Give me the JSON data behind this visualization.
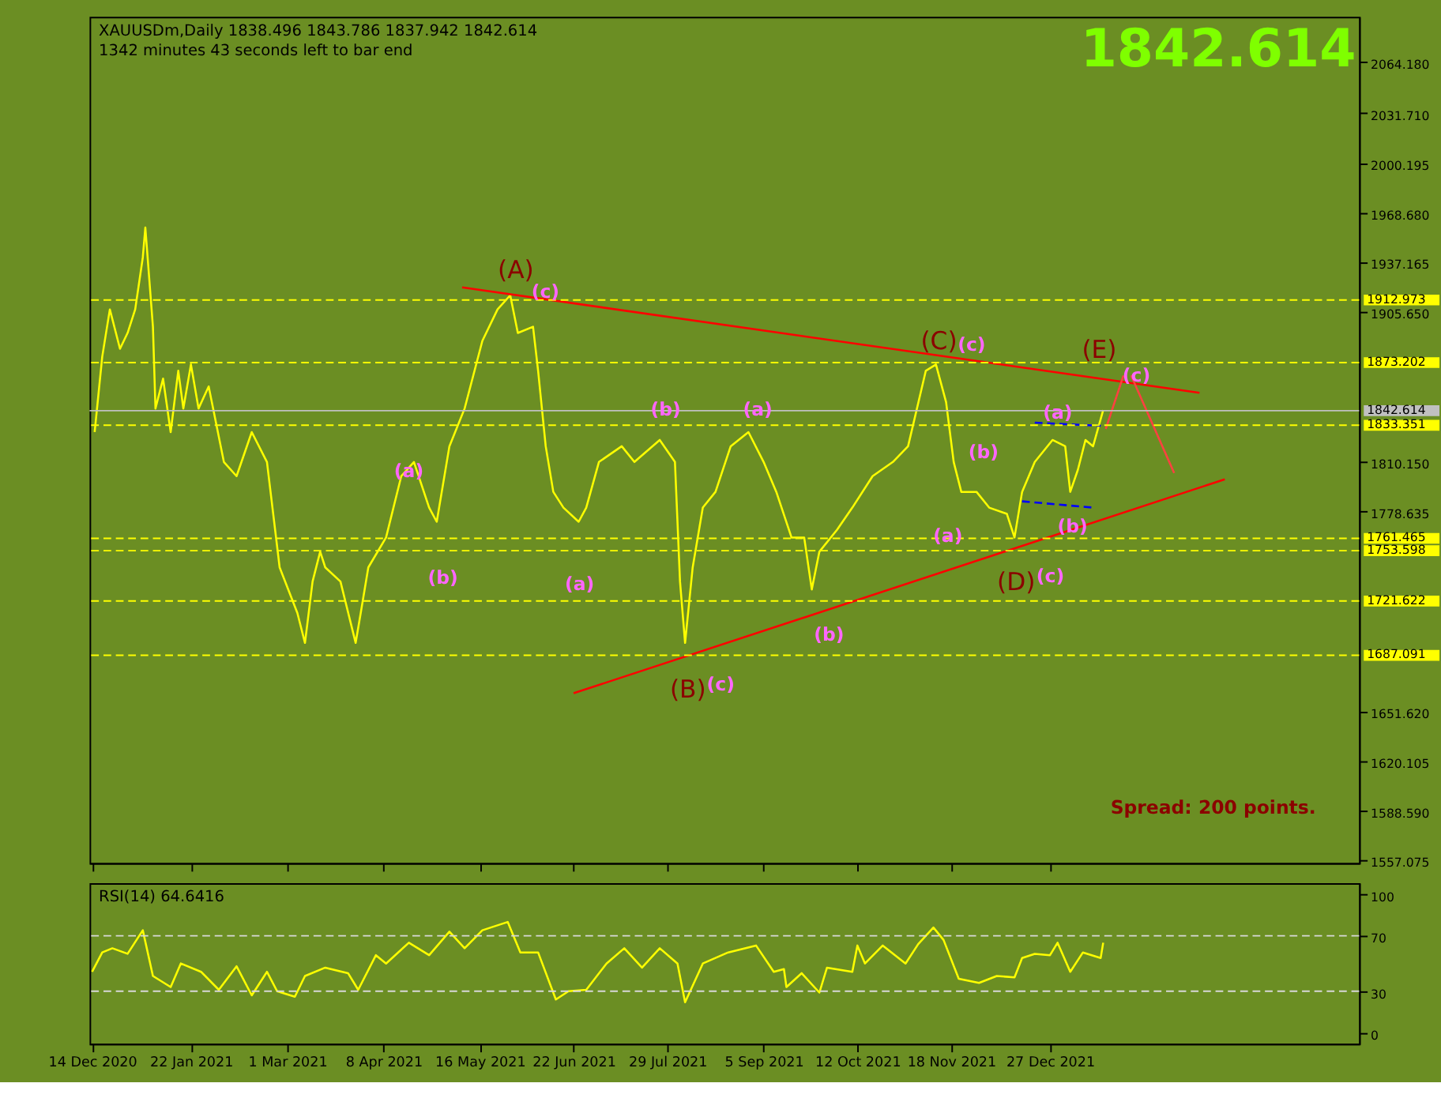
{
  "chart_data": [
    {
      "type": "line",
      "title": "XAUUSDm,Daily  1838.496 1843.786 1837.942 1842.614",
      "subtitle": "1342 minutes 43 seconds left to bar end",
      "series": [
        {
          "color": "#ffff00",
          "x": [
            "2020-12-15",
            "2020-12-18",
            "2020-12-21",
            "2020-12-25",
            "2020-12-28",
            "2020-12-31",
            "2021-01-03",
            "2021-01-04",
            "2021-01-07",
            "2021-01-08",
            "2021-01-11",
            "2021-01-14",
            "2021-01-17",
            "2021-01-19",
            "2021-01-22",
            "2021-01-25",
            "2021-01-29",
            "2021-02-04",
            "2021-02-09",
            "2021-02-15",
            "2021-02-21",
            "2021-02-26",
            "2021-03-05",
            "2021-03-08",
            "2021-03-11",
            "2021-03-14",
            "2021-03-16",
            "2021-03-22",
            "2021-03-28",
            "2021-03-30",
            "2021-04-02",
            "2021-04-09",
            "2021-04-15",
            "2021-04-20",
            "2021-04-26",
            "2021-04-29",
            "2021-05-04",
            "2021-05-10",
            "2021-05-17",
            "2021-05-23",
            "2021-05-28",
            "2021-05-31",
            "2021-06-06",
            "2021-06-08",
            "2021-06-11",
            "2021-06-14",
            "2021-06-18",
            "2021-06-24",
            "2021-06-27",
            "2021-07-02",
            "2021-07-11",
            "2021-07-16",
            "2021-07-26",
            "2021-08-01",
            "2021-08-03",
            "2021-08-05",
            "2021-08-08",
            "2021-08-12",
            "2021-08-17",
            "2021-08-23",
            "2021-08-30",
            "2021-09-05",
            "2021-09-10",
            "2021-09-16",
            "2021-09-21",
            "2021-09-24",
            "2021-09-27",
            "2021-10-04",
            "2021-10-10",
            "2021-10-18",
            "2021-10-26",
            "2021-11-01",
            "2021-11-08",
            "2021-11-12",
            "2021-11-16",
            "2021-11-19",
            "2021-11-22",
            "2021-11-28",
            "2021-12-03",
            "2021-12-10",
            "2021-12-13",
            "2021-12-16",
            "2021-12-21",
            "2021-12-28",
            "2022-01-02",
            "2022-01-04",
            "2022-01-07",
            "2022-01-10",
            "2022-01-13",
            "2022-01-17"
          ],
          "values": [
            1829,
            1877,
            1907,
            1882,
            1892,
            1907,
            1940,
            1959,
            1896,
            1844,
            1863,
            1829,
            1868,
            1844,
            1872,
            1844,
            1858,
            1810,
            1801,
            1829,
            1810,
            1743,
            1714,
            1695,
            1734,
            1753,
            1743,
            1734,
            1695,
            1714,
            1743,
            1762,
            1801,
            1810,
            1781,
            1772,
            1820,
            1844,
            1887,
            1907,
            1916,
            1892,
            1896,
            1868,
            1820,
            1791,
            1781,
            1772,
            1781,
            1810,
            1820,
            1810,
            1824,
            1810,
            1734,
            1695,
            1743,
            1781,
            1791,
            1820,
            1829,
            1810,
            1791,
            1762,
            1762,
            1729,
            1753,
            1767,
            1781,
            1801,
            1810,
            1820,
            1868,
            1872,
            1848,
            1810,
            1791,
            1791,
            1781,
            1777,
            1762,
            1791,
            1810,
            1824,
            1820,
            1791,
            1805,
            1824,
            1820,
            1843
          ]
        },
        {
          "color": "#ff0000",
          "x": [
            "2021-05-09",
            "2022-02-24"
          ],
          "values": [
            1921,
            1854
          ]
        },
        {
          "color": "#ff0000",
          "x": [
            "2021-06-22",
            "2022-03-06"
          ],
          "values": [
            1663,
            1799
          ]
        },
        {
          "color": "#0000ff",
          "line_style": "dashed",
          "x": [
            "2021-12-21",
            "2022-01-16"
          ],
          "values": [
            1835,
            1833
          ]
        },
        {
          "color": "#0000ff",
          "line_style": "dashed",
          "x": [
            "2021-12-16",
            "2022-01-13"
          ],
          "values": [
            1785,
            1781
          ]
        },
        {
          "color": "#ff4040",
          "x": [
            "2022-01-18",
            "2022-01-25"
          ],
          "values": [
            1831,
            1865
          ]
        },
        {
          "color": "#ff4040",
          "x": [
            "2022-01-28",
            "2022-02-14"
          ],
          "values": [
            1865,
            1803
          ]
        }
      ],
      "xlim": [
        "2020-12-13",
        "2022-04-28"
      ],
      "xticks": [
        {
          "value": "2020-12-14",
          "label": null
        },
        {
          "value": "2021-01-22",
          "label": null
        },
        {
          "value": "2021-03-01",
          "label": null
        },
        {
          "value": "2021-04-08",
          "label": null
        },
        {
          "value": "2021-05-16",
          "label": null
        },
        {
          "value": "2021-06-22",
          "label": null
        },
        {
          "value": "2021-07-29",
          "label": null
        },
        {
          "value": "2021-09-05",
          "label": null
        },
        {
          "value": "2021-10-12",
          "label": null
        },
        {
          "value": "2021-11-18",
          "label": null
        },
        {
          "value": "2021-12-27",
          "label": null
        }
      ],
      "ylim": [
        1555,
        2093
      ],
      "yticks": [
        {
          "value": 2064.18,
          "label": "2064.180"
        },
        {
          "value": 2031.71,
          "label": "2031.710"
        },
        {
          "value": 2000.195,
          "label": "2000.195"
        },
        {
          "value": 1968.68,
          "label": "1968.680"
        },
        {
          "value": 1937.165,
          "label": "1937.165"
        },
        {
          "value": 1905.65,
          "label": "1905.650"
        },
        {
          "value": 1810.15,
          "label": "1810.150"
        },
        {
          "value": 1778.635,
          "label": "1778.635"
        },
        {
          "value": 1651.62,
          "label": "1651.620"
        },
        {
          "value": 1620.105,
          "label": "1620.105"
        },
        {
          "value": 1588.59,
          "label": "1588.590"
        },
        {
          "value": 1557.075,
          "label": "1557.075"
        }
      ],
      "tick_labels": "y",
      "grid": false,
      "marker": "none",
      "line_style": "solid",
      "ref_lines": [
        {
          "axis": "y",
          "value": 1912.973,
          "label": "1912.973",
          "color": "#ffff00",
          "line_style": "dashed"
        },
        {
          "axis": "y",
          "value": 1873.202,
          "label": "1873.202",
          "color": "#ffff00",
          "line_style": "dashed"
        },
        {
          "axis": "y",
          "value": 1833.351,
          "label": "1833.351",
          "color": "#ffff00",
          "line_style": "dashed"
        },
        {
          "axis": "y",
          "value": 1761.465,
          "label": "1761.465",
          "color": "#ffff00",
          "line_style": "dashed"
        },
        {
          "axis": "y",
          "value": 1753.598,
          "label": "1753.598",
          "color": "#ffff00",
          "line_style": "dashed"
        },
        {
          "axis": "y",
          "value": 1721.622,
          "label": "1721.622",
          "color": "#ffff00",
          "line_style": "dashed"
        },
        {
          "axis": "y",
          "value": 1687.091,
          "label": "1687.091",
          "color": "#ffff00",
          "line_style": "dashed"
        },
        {
          "axis": "y",
          "value": 1842.614,
          "label": "1842.614",
          "color": "#c0c0c0",
          "line_style": "solid"
        }
      ],
      "annotations": [
        "1842.614",
        "Spread: 200 points.",
        "(A)",
        "(B)",
        "(C)",
        "(D)",
        "(E)",
        "(c)",
        "(c)",
        "(c)",
        "(c)",
        "(c)",
        "(a)",
        "(b)",
        "(a)",
        "(b)",
        "(a)",
        "(b)",
        "(a)",
        "(b)",
        "(a)",
        "(b)"
      ]
    },
    {
      "type": "line",
      "title": "RSI(14) 64.6416",
      "series": [
        {
          "color": "#ffff00",
          "x": [
            "2020-12-14",
            "2020-12-18",
            "2020-12-22",
            "2020-12-28",
            "2021-01-03",
            "2021-01-07",
            "2021-01-14",
            "2021-01-18",
            "2021-01-26",
            "2021-02-02",
            "2021-02-09",
            "2021-02-15",
            "2021-02-21",
            "2021-02-25",
            "2021-03-04",
            "2021-03-08",
            "2021-03-16",
            "2021-03-25",
            "2021-03-29",
            "2021-04-05",
            "2021-04-09",
            "2021-04-18",
            "2021-04-26",
            "2021-05-04",
            "2021-05-10",
            "2021-05-17",
            "2021-05-27",
            "2021-06-01",
            "2021-06-08",
            "2021-06-15",
            "2021-06-20",
            "2021-06-27",
            "2021-07-05",
            "2021-07-12",
            "2021-07-19",
            "2021-07-26",
            "2021-08-02",
            "2021-08-05",
            "2021-08-12",
            "2021-08-22",
            "2021-09-02",
            "2021-09-09",
            "2021-09-13",
            "2021-09-14",
            "2021-09-20",
            "2021-09-27",
            "2021-09-30",
            "2021-10-10",
            "2021-10-12",
            "2021-10-15",
            "2021-10-22",
            "2021-10-31",
            "2021-11-05",
            "2021-11-11",
            "2021-11-15",
            "2021-11-21",
            "2021-11-29",
            "2021-12-06",
            "2021-12-13",
            "2021-12-16",
            "2021-12-21",
            "2021-12-27",
            "2021-12-30",
            "2022-01-04",
            "2022-01-09",
            "2022-01-16",
            "2022-01-17"
          ],
          "values": [
            44,
            58,
            61,
            57,
            74,
            41,
            33,
            50,
            44,
            31,
            48,
            27,
            44,
            30,
            26,
            41,
            47,
            43,
            31,
            56,
            50,
            65,
            56,
            73,
            61,
            74,
            80,
            58,
            58,
            24,
            30,
            31,
            50,
            61,
            47,
            61,
            50,
            22,
            50,
            58,
            63,
            44,
            46,
            33,
            43,
            29,
            47,
            44,
            63,
            50,
            63,
            50,
            64,
            76,
            67,
            39,
            36,
            41,
            40,
            54,
            57,
            56,
            65,
            44,
            58,
            54,
            65
          ]
        }
      ],
      "xlim": [
        "2020-12-13",
        "2022-04-28"
      ],
      "xticks": [
        {
          "value": "2020-12-14",
          "label": "14 Dec 2020"
        },
        {
          "value": "2021-01-22",
          "label": "22 Jan 2021"
        },
        {
          "value": "2021-03-01",
          "label": "1 Mar 2021"
        },
        {
          "value": "2021-04-08",
          "label": "8 Apr 2021"
        },
        {
          "value": "2021-05-16",
          "label": "16 May 2021"
        },
        {
          "value": "2021-06-22",
          "label": "22 Jun 2021"
        },
        {
          "value": "2021-07-29",
          "label": "29 Jul 2021"
        },
        {
          "value": "2021-09-05",
          "label": "5 Sep 2021"
        },
        {
          "value": "2021-10-12",
          "label": "12 Oct 2021"
        },
        {
          "value": "2021-11-18",
          "label": "18 Nov 2021"
        },
        {
          "value": "2021-12-27",
          "label": "27 Dec 2021"
        }
      ],
      "ylim": [
        -8,
        108
      ],
      "yticks": [
        0,
        30,
        70,
        100
      ],
      "grid": false,
      "marker": "none",
      "line_style": "solid",
      "ref_lines": [
        {
          "axis": "y",
          "value": 70,
          "color": "#d8d8d8",
          "line_style": "dashed"
        },
        {
          "axis": "y",
          "value": 30,
          "color": "#d8d8d8",
          "line_style": "dashed"
        }
      ]
    }
  ]
}
